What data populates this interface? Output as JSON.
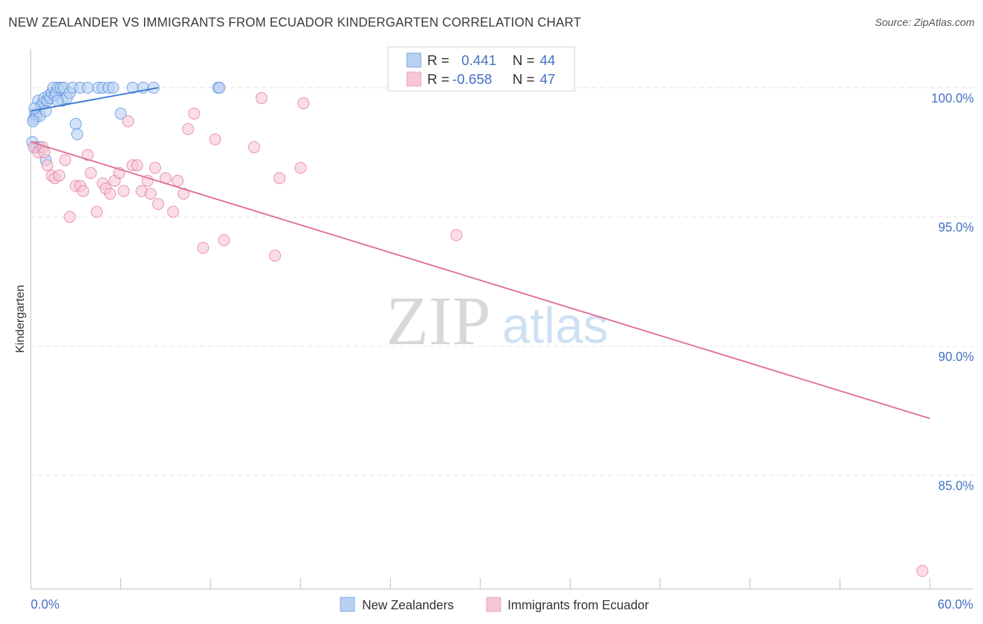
{
  "title": "NEW ZEALANDER VS IMMIGRANTS FROM ECUADOR KINDERGARTEN CORRELATION CHART",
  "source": "Source: ZipAtlas.com",
  "watermark": {
    "zip": "ZIP",
    "atlas": "atlas"
  },
  "colors": {
    "blue": "#4a86d8",
    "blue_fill": "#b8d1f3",
    "pink": "#e0709a",
    "pink_fill": "#f7c6d6",
    "tick_text": "#4472c4",
    "grid": "#e3e3e3"
  },
  "legend": {
    "rows": [
      {
        "r_label": "R =",
        "r_value": "0.441",
        "n_label": "N =",
        "n_value": "44"
      },
      {
        "r_label": "R =",
        "r_value": "-0.658",
        "n_label": "N =",
        "n_value": "47"
      }
    ]
  },
  "bottom_legend": [
    "New Zealanders",
    "Immigrants from Ecuador"
  ],
  "chart_data": {
    "type": "scatter",
    "xlabel": "",
    "ylabel": "Kindergarten",
    "xlim": [
      0,
      60
    ],
    "ylim": [
      80.6,
      101.5
    ],
    "x_tick_labels": [
      "0.0%",
      "60.0%"
    ],
    "y_ticks": [
      85,
      90,
      95,
      100
    ],
    "y_tick_labels": [
      "85.0%",
      "90.0%",
      "95.0%",
      "100.0%"
    ],
    "series": [
      {
        "name": "New Zealanders",
        "R": 0.441,
        "N": 44,
        "trend": {
          "x": [
            0.0,
            8.5
          ],
          "y": [
            99.1,
            100.0
          ]
        },
        "points": [
          [
            0.1,
            97.9
          ],
          [
            0.2,
            98.8
          ],
          [
            0.3,
            99.0
          ],
          [
            0.4,
            98.9
          ],
          [
            0.5,
            99.5
          ],
          [
            0.6,
            98.9
          ],
          [
            0.7,
            99.3
          ],
          [
            0.8,
            99.4
          ],
          [
            0.9,
            99.6
          ],
          [
            1.0,
            99.1
          ],
          [
            1.1,
            99.5
          ],
          [
            1.2,
            99.7
          ],
          [
            1.3,
            99.6
          ],
          [
            1.4,
            99.8
          ],
          [
            1.5,
            100.0
          ],
          [
            1.6,
            99.7
          ],
          [
            1.7,
            99.8
          ],
          [
            1.8,
            100.0
          ],
          [
            2.0,
            100.0
          ],
          [
            2.1,
            99.5
          ],
          [
            2.2,
            100.0
          ],
          [
            2.4,
            99.6
          ],
          [
            2.6,
            99.8
          ],
          [
            2.8,
            100.0
          ],
          [
            3.0,
            98.6
          ],
          [
            3.1,
            98.2
          ],
          [
            3.3,
            100.0
          ],
          [
            3.8,
            100.0
          ],
          [
            4.5,
            100.0
          ],
          [
            4.8,
            100.0
          ],
          [
            5.2,
            100.0
          ],
          [
            5.5,
            100.0
          ],
          [
            6.0,
            99.0
          ],
          [
            6.8,
            100.0
          ],
          [
            7.5,
            100.0
          ],
          [
            8.2,
            100.0
          ],
          [
            12.5,
            100.0
          ],
          [
            12.6,
            100.0
          ],
          [
            0.15,
            98.7
          ],
          [
            0.35,
            97.7
          ],
          [
            0.6,
            97.7
          ],
          [
            1.0,
            97.2
          ],
          [
            0.25,
            99.2
          ],
          [
            1.8,
            99.5
          ]
        ]
      },
      {
        "name": "Immigrants from Ecuador",
        "R": -0.658,
        "N": 47,
        "trend": {
          "x": [
            0.0,
            60.0
          ],
          "y": [
            97.9,
            87.2
          ]
        },
        "points": [
          [
            0.2,
            97.7
          ],
          [
            0.5,
            97.5
          ],
          [
            0.8,
            97.7
          ],
          [
            1.1,
            97.0
          ],
          [
            1.4,
            96.6
          ],
          [
            1.6,
            96.5
          ],
          [
            1.9,
            96.6
          ],
          [
            2.3,
            97.2
          ],
          [
            2.6,
            95.0
          ],
          [
            3.0,
            96.2
          ],
          [
            3.3,
            96.2
          ],
          [
            3.5,
            96.0
          ],
          [
            3.8,
            97.4
          ],
          [
            4.0,
            96.7
          ],
          [
            4.4,
            95.2
          ],
          [
            4.8,
            96.3
          ],
          [
            5.0,
            96.1
          ],
          [
            5.3,
            95.9
          ],
          [
            5.6,
            96.4
          ],
          [
            5.9,
            96.7
          ],
          [
            6.2,
            96.0
          ],
          [
            6.5,
            98.7
          ],
          [
            6.8,
            97.0
          ],
          [
            7.1,
            97.0
          ],
          [
            7.4,
            96.0
          ],
          [
            7.8,
            96.4
          ],
          [
            8.0,
            95.9
          ],
          [
            8.3,
            96.9
          ],
          [
            8.5,
            95.5
          ],
          [
            9.0,
            96.5
          ],
          [
            9.5,
            95.2
          ],
          [
            9.8,
            96.4
          ],
          [
            10.2,
            95.9
          ],
          [
            10.5,
            98.4
          ],
          [
            10.9,
            99.0
          ],
          [
            11.5,
            93.8
          ],
          [
            12.3,
            98.0
          ],
          [
            12.9,
            94.1
          ],
          [
            14.9,
            97.7
          ],
          [
            15.4,
            99.6
          ],
          [
            16.3,
            93.5
          ],
          [
            16.6,
            96.5
          ],
          [
            18.0,
            96.9
          ],
          [
            18.2,
            99.4
          ],
          [
            28.4,
            94.3
          ],
          [
            59.5,
            81.3
          ],
          [
            0.9,
            97.5
          ]
        ]
      }
    ]
  }
}
